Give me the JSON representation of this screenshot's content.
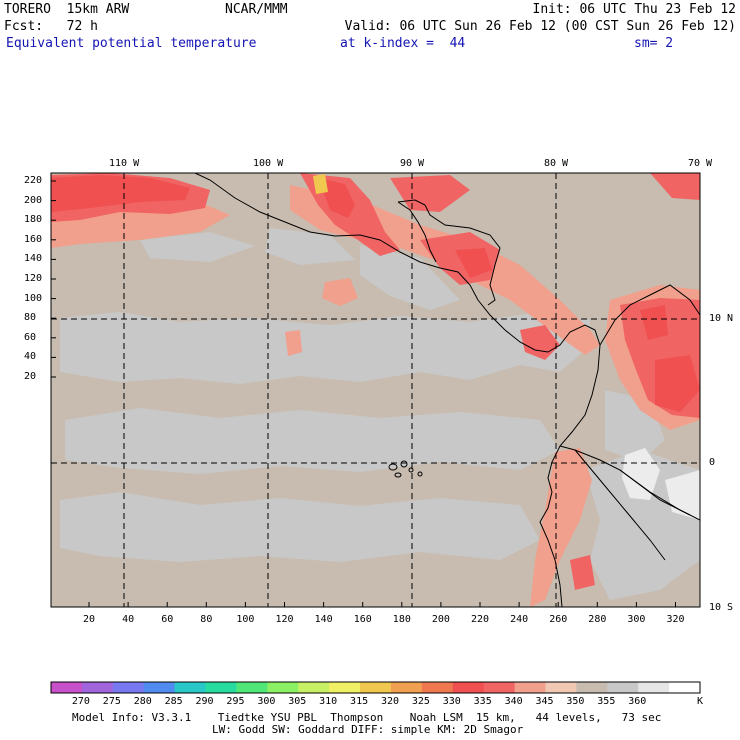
{
  "header": {
    "model_name": "TORERO  15km ARW",
    "center": "NCAR/MMM",
    "init": "Init: 06 UTC Thu 23 Feb 12",
    "forecast": "Fcst:   72 h",
    "valid": "Valid: 06 UTC Sun 26 Feb 12 (00 CST Sun 26 Feb 12)",
    "field": "Equivalent potential temperature",
    "level": "at k-index =  44",
    "smoothing": "sm= 2"
  },
  "map": {
    "longitude_labels": [
      "110 W",
      "100 W",
      "90 W",
      "80 W",
      "70 W"
    ],
    "latitude_labels": [
      "10 N",
      "0",
      "10 S"
    ],
    "y_grid_labels": [
      "220",
      "200",
      "180",
      "160",
      "140",
      "120",
      "100",
      "80",
      "60",
      "40",
      "20"
    ],
    "x_grid_labels": [
      "20",
      "40",
      "60",
      "80",
      "100",
      "120",
      "140",
      "160",
      "180",
      "200",
      "220",
      "240",
      "260",
      "280",
      "300",
      "320"
    ],
    "base_color": "#c8bcb0"
  },
  "colorbar": {
    "labels": [
      "270",
      "275",
      "280",
      "285",
      "290",
      "295",
      "300",
      "305",
      "310",
      "315",
      "320",
      "325",
      "330",
      "335",
      "340",
      "345",
      "350",
      "355",
      "360"
    ],
    "unit": "K",
    "colors": [
      "#c850c8",
      "#a064dc",
      "#7878f0",
      "#508cf0",
      "#28c8c8",
      "#28dca0",
      "#50e678",
      "#8cf064",
      "#c8f064",
      "#f0f064",
      "#f0c850",
      "#f0a050",
      "#f07850",
      "#f05050",
      "#f06464",
      "#f0a08c",
      "#f0c8b4",
      "#c8bcb0",
      "#c8c8c8",
      "#e6e6e6",
      "#ffffff"
    ]
  },
  "footer": {
    "line1": "Model Info: V3.3.1    Tiedtke YSU PBL  Thompson    Noah LSM  15 km,   44 levels,   73 sec",
    "line2": "LW: Godd SW: Goddard DIFF: simple KM: 2D Smagor"
  }
}
